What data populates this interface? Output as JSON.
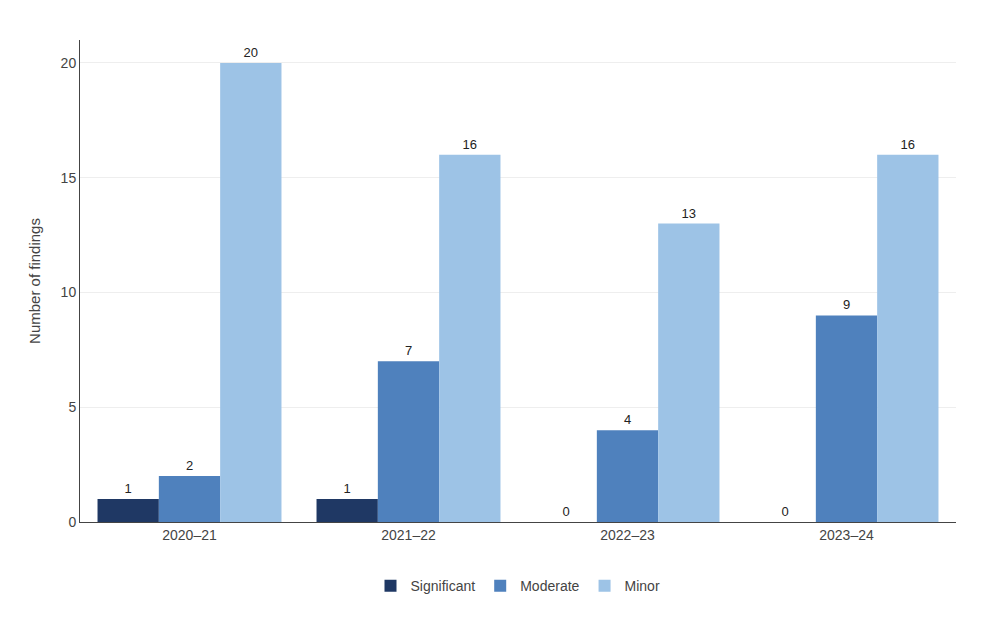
{
  "chart_data": {
    "type": "bar",
    "ylabel": "Number of findings",
    "categories": [
      "2020–21",
      "2021–22",
      "2022–23",
      "2023–24"
    ],
    "series": [
      {
        "name": "Significant",
        "color": "#1f3864",
        "values": [
          1,
          1,
          0,
          0
        ]
      },
      {
        "name": "Moderate",
        "color": "#4f81bd",
        "values": [
          2,
          7,
          4,
          9
        ]
      },
      {
        "name": "Minor",
        "color": "#9dc3e6",
        "values": [
          20,
          16,
          13,
          16
        ]
      }
    ],
    "ylim": [
      0,
      21
    ],
    "yticks": [
      0,
      5,
      10,
      15,
      20
    ],
    "grid": true,
    "data_labels": true,
    "legend": "bottom"
  }
}
